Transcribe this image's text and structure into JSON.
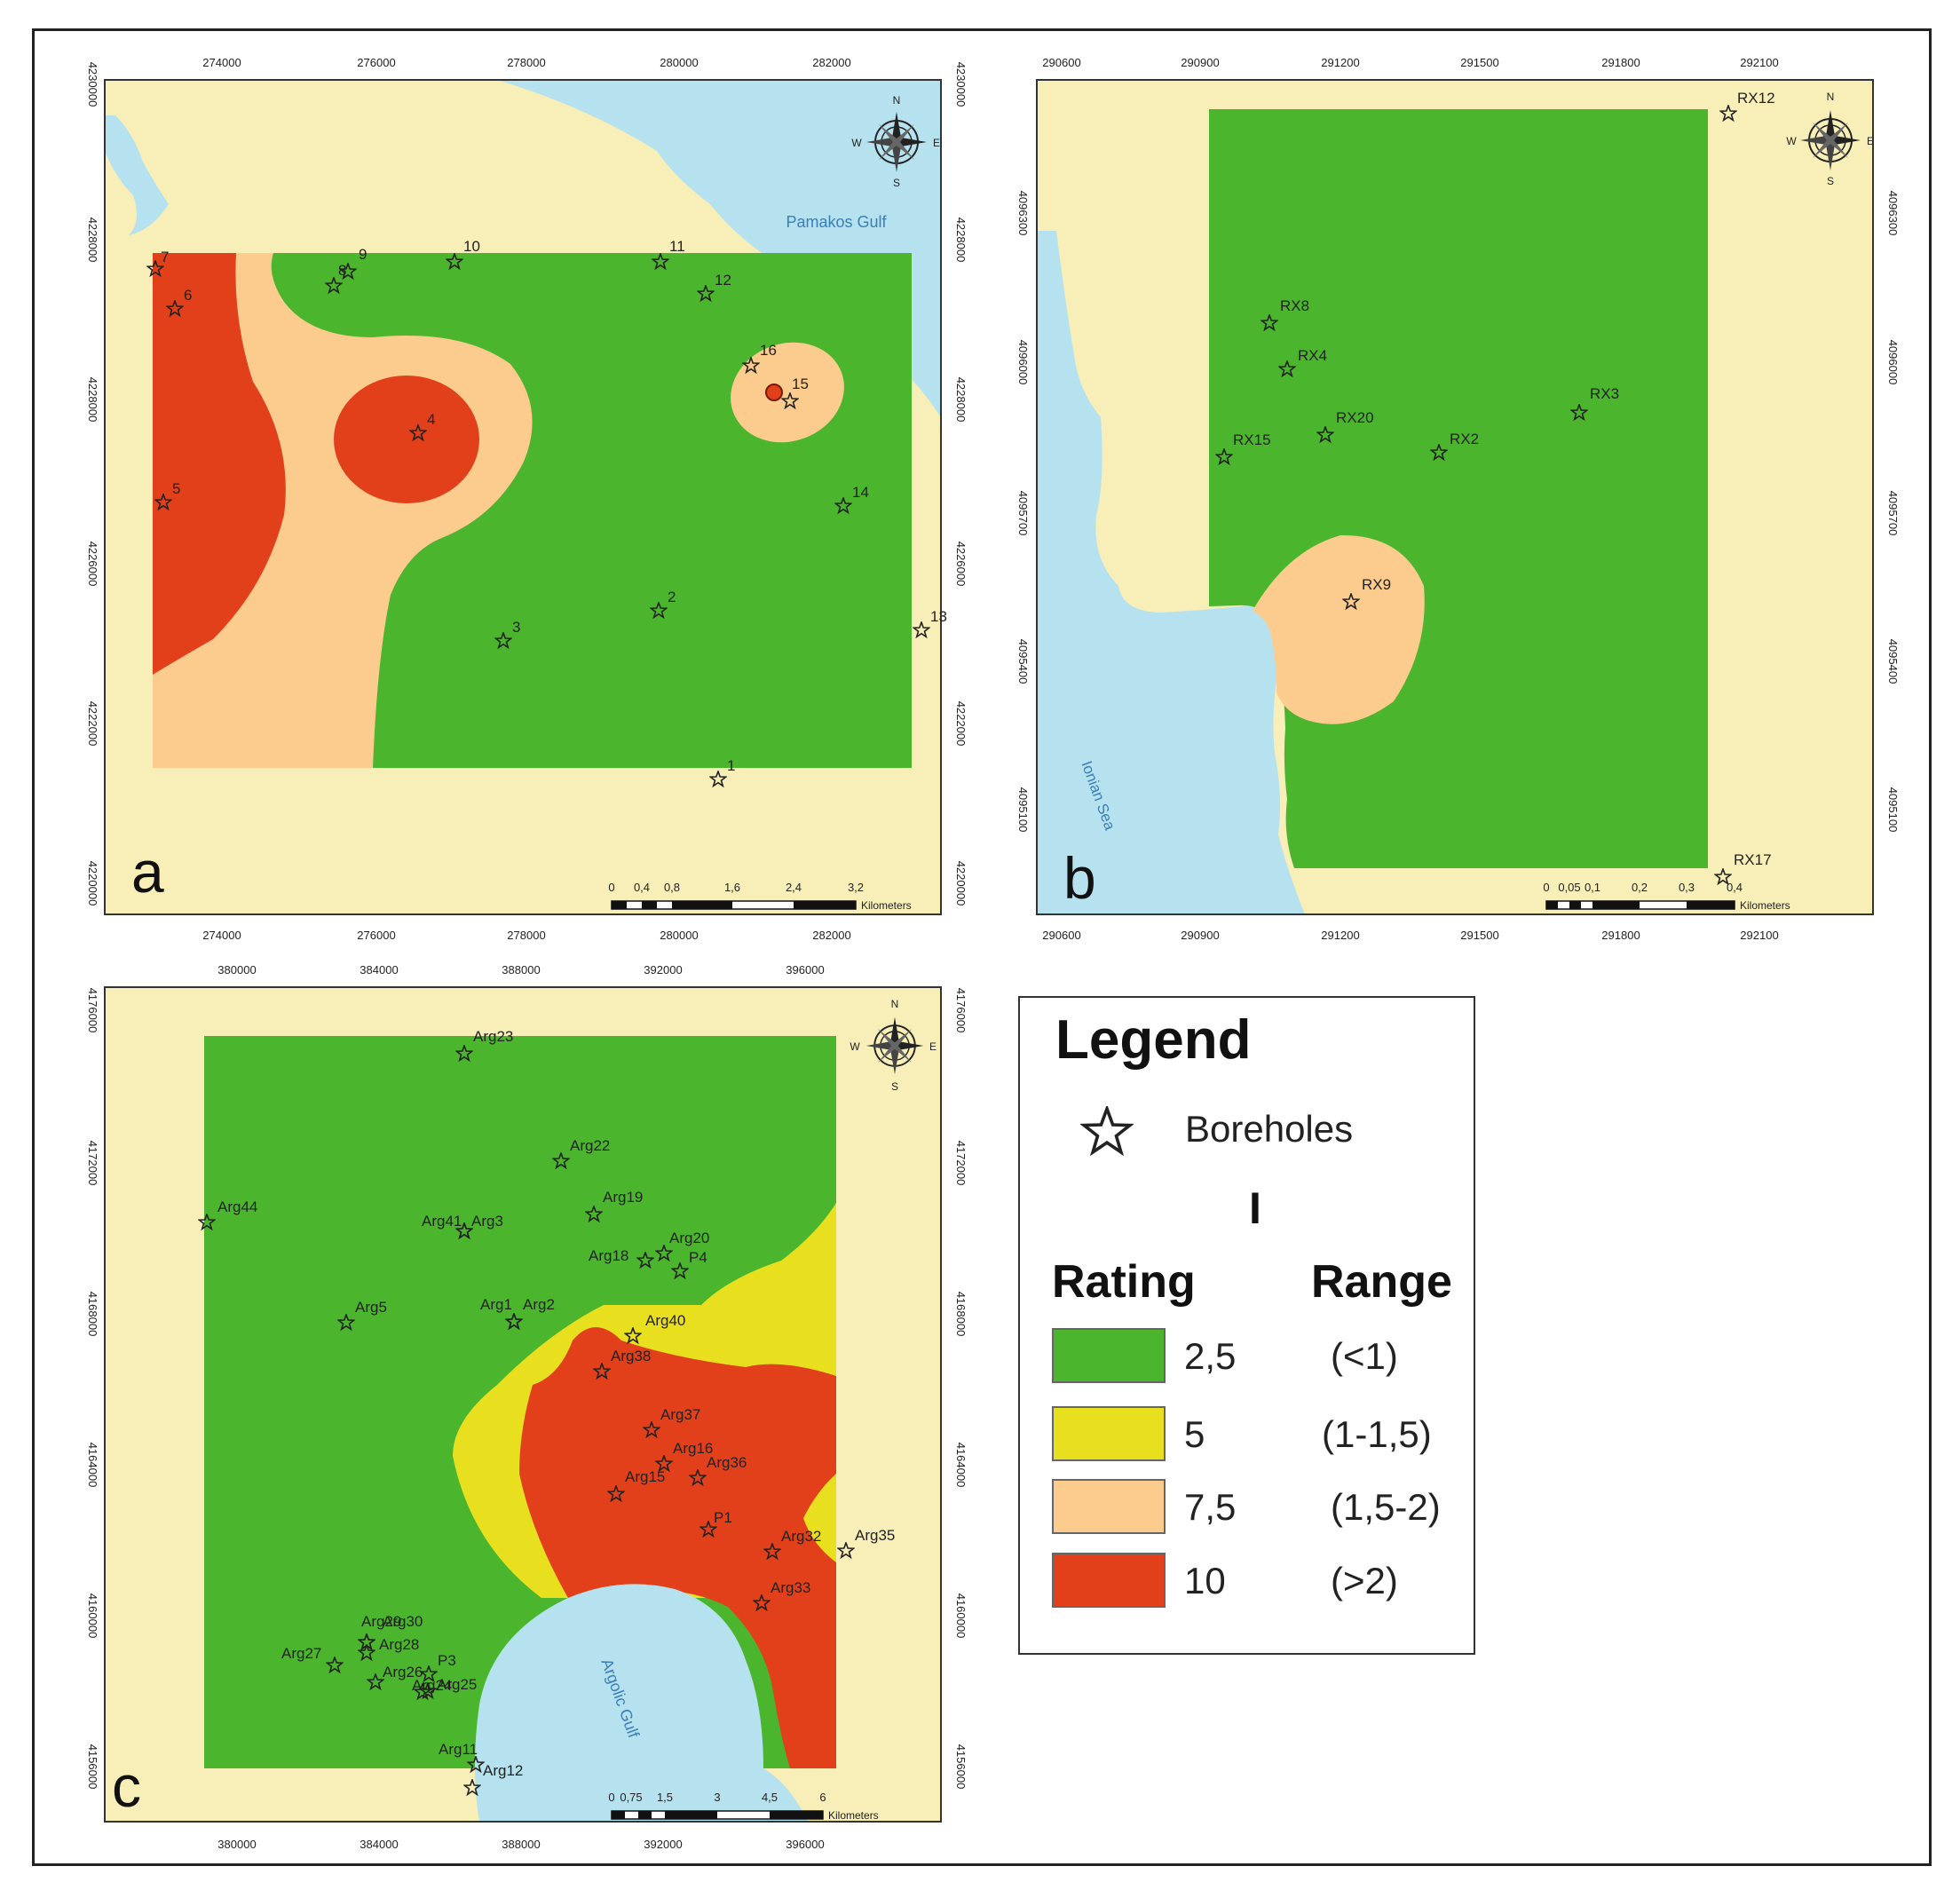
{
  "colors": {
    "land": "#f7eeb8",
    "sea": "#b6e1ee",
    "green": "#4bb62d",
    "yellow": "#e8e01e",
    "orange": "#fbcc8d",
    "red": "#e1401a"
  },
  "panels": {
    "a": {
      "letter": "a",
      "x_ticks": [
        "274000",
        "276000",
        "278000",
        "280000",
        "282000"
      ],
      "y_ticks": [
        "4228000",
        "4226000",
        "4224000",
        "4222000",
        "4220000"
      ],
      "y_top": "4230000",
      "sea_label": "Pamakos Gulf",
      "scale_numbers": [
        "0",
        "0,4",
        "0,8",
        "1,6",
        "2,4",
        "3,2"
      ],
      "scale_unit": "Kilometers",
      "boreholes": [
        "7",
        "6",
        "8",
        "9",
        "10",
        "11",
        "12",
        "16",
        "15",
        "4",
        "5",
        "14",
        "2",
        "3",
        "13",
        "1"
      ]
    },
    "b": {
      "letter": "b",
      "x_ticks": [
        "290600",
        "290900",
        "291200",
        "291500",
        "291800",
        "292100"
      ],
      "y_ticks": [
        "4096300",
        "4096000",
        "4095700",
        "4095400",
        "4095100"
      ],
      "sea_label": "Ionian Sea",
      "scale_numbers": [
        "0",
        "0,05",
        "0,1",
        "0,2",
        "0,3",
        "0,4"
      ],
      "scale_unit": "Kilometers",
      "boreholes": [
        "RX12",
        "RX8",
        "RX4",
        "RX20",
        "RX15",
        "RX2",
        "RX3",
        "RX9",
        "RX17"
      ]
    },
    "c": {
      "letter": "c",
      "x_ticks": [
        "380000",
        "384000",
        "388000",
        "392000",
        "396000"
      ],
      "y_ticks": [
        "4176000",
        "4172000",
        "4168000",
        "4164000",
        "4160000",
        "4156000"
      ],
      "sea_label": "Argolic Gulf",
      "scale_numbers": [
        "0",
        "0,75",
        "1,5",
        "3",
        "4,5",
        "6"
      ],
      "scale_unit": "Kilometers",
      "boreholes": [
        "Arg23",
        "Arg22",
        "Arg44",
        "Arg19",
        "Arg41",
        "Arg3",
        "Arg18",
        "Arg20",
        "P4",
        "Arg5",
        "Arg1",
        "Arg2",
        "Arg40",
        "Arg38",
        "Arg37",
        "Arg16",
        "Arg36",
        "Arg15",
        "P1",
        "Arg32",
        "Arg35",
        "Arg33",
        "Arg29",
        "Arg30",
        "Arg27",
        "Arg28",
        "P3",
        "Arg26",
        "Arg24",
        "Arg25",
        "Arg11",
        "Arg12"
      ]
    }
  },
  "compass": {
    "n": "N",
    "s": "S",
    "e": "E",
    "w": "W"
  },
  "legend": {
    "title": "Legend",
    "boreholes_label": "Boreholes",
    "index_label": "I",
    "rating_header": "Rating",
    "range_header": "Range",
    "items": [
      {
        "rating": "2,5",
        "range": "(<1)",
        "color": "#4bb62d"
      },
      {
        "rating": "5",
        "range": "(1-1,5)",
        "color": "#e8e01e"
      },
      {
        "rating": "7,5",
        "range": "(1,5-2)",
        "color": "#fbcc8d"
      },
      {
        "rating": "10",
        "range": "(>2)",
        "color": "#e1401a"
      }
    ]
  }
}
